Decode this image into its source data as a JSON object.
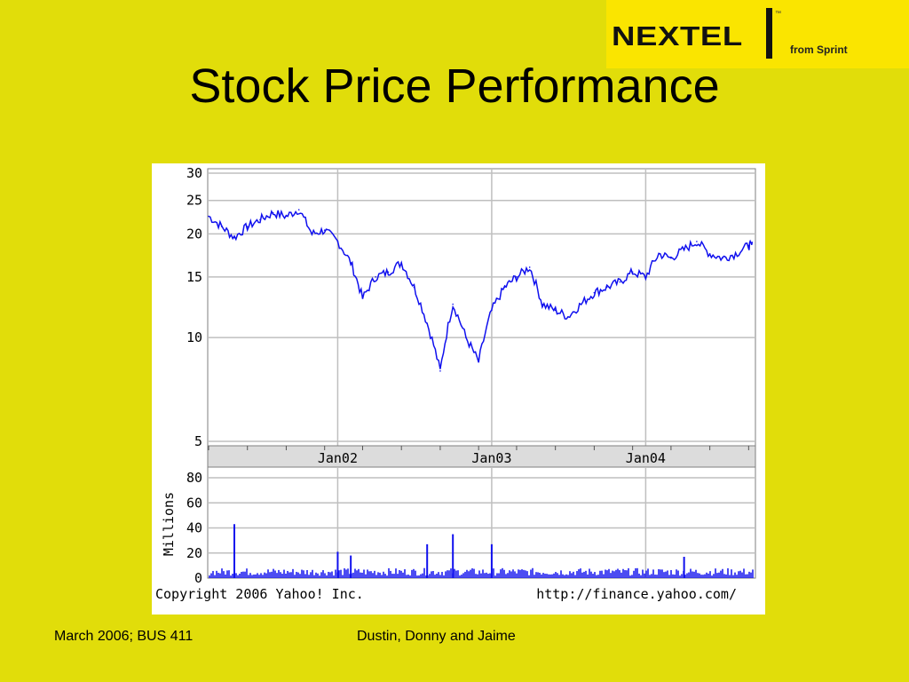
{
  "slide": {
    "title": "Stock Price Performance",
    "footer_left": "March 2006; BUS 411",
    "footer_center": "Dustin, Donny and Jaime"
  },
  "logo": {
    "brand": "NEXTEL",
    "trademark": "™",
    "tagline": "from Sprint"
  },
  "colors": {
    "background": "#e1dd0a",
    "logo_background": "#fae500",
    "line": "#1010ee",
    "grid": "#bfbfbf"
  },
  "chart_data": [
    {
      "type": "line",
      "title": "",
      "ylabel": "",
      "y_scale": "log",
      "ylim": [
        5,
        30
      ],
      "y_ticks": [
        "30",
        "25",
        "20",
        "15",
        "10",
        "5"
      ],
      "x_ticks": [
        "Jan02",
        "Jan03",
        "Jan04"
      ],
      "x": [
        "2001-03-01",
        "2001-04-01",
        "2001-05-01",
        "2001-06-01",
        "2001-07-01",
        "2001-08-01",
        "2001-09-01",
        "2001-10-01",
        "2001-11-01",
        "2001-12-01",
        "2002-01-01",
        "2002-02-01",
        "2002-03-01",
        "2002-04-01",
        "2002-05-01",
        "2002-06-01",
        "2002-07-01",
        "2002-08-01",
        "2002-09-01",
        "2002-10-01",
        "2002-11-01",
        "2002-12-01",
        "2003-01-01",
        "2003-02-01",
        "2003-03-01",
        "2003-04-01",
        "2003-05-01",
        "2003-06-01",
        "2003-07-01",
        "2003-08-01",
        "2003-09-01",
        "2003-10-01",
        "2003-11-01",
        "2003-12-01",
        "2004-01-01",
        "2004-02-01",
        "2004-03-01",
        "2004-04-01",
        "2004-05-01",
        "2004-06-01",
        "2004-07-01",
        "2004-08-01",
        "2004-09-01"
      ],
      "series": [
        {
          "values": [
            22.5,
            21,
            19.5,
            21,
            22,
            23,
            22.5,
            23.5,
            20,
            20.5,
            19,
            16.5,
            13,
            15,
            15.5,
            16.5,
            14,
            11,
            8,
            12.5,
            10,
            8.5,
            12,
            14,
            15,
            16,
            12.5,
            12,
            11.5,
            12.5,
            13.5,
            14,
            14.5,
            15.5,
            15,
            17.5,
            17,
            18,
            19,
            17.5,
            17,
            17.5,
            18.5
          ]
        }
      ],
      "spikes": []
    },
    {
      "type": "bar",
      "title": "",
      "ylabel": "Millions",
      "ylim": [
        0,
        80
      ],
      "y_ticks": [
        "80",
        "60",
        "40",
        "20",
        "0"
      ],
      "baseline_volume": 5,
      "spikes": [
        {
          "x": "2001-05-01",
          "value": 43
        },
        {
          "x": "2002-01-01",
          "value": 21
        },
        {
          "x": "2002-02-01",
          "value": 18
        },
        {
          "x": "2002-08-01",
          "value": 27
        },
        {
          "x": "2002-10-01",
          "value": 35
        },
        {
          "x": "2003-01-01",
          "value": 27
        },
        {
          "x": "2004-04-01",
          "value": 17
        }
      ]
    }
  ],
  "chart_footer": {
    "copyright": "Copyright 2006 Yahoo! Inc.",
    "url": "http://finance.yahoo.com/"
  }
}
